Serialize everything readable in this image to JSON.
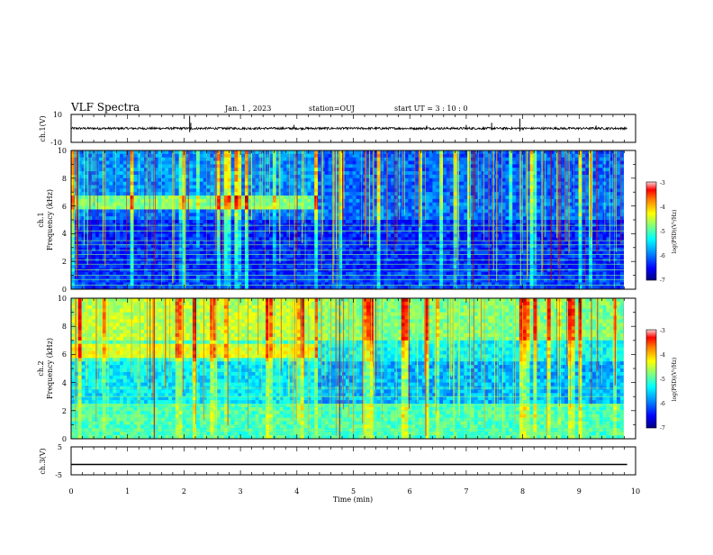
{
  "header": {
    "title": "VLF Spectra",
    "date": "Jan. 1 , 2023",
    "station": "station=OUJ",
    "start_ut": "start UT = 3 : 10 : 0"
  },
  "chart_data": [
    {
      "type": "line",
      "name": "ch1-waveform",
      "ylabel": "ch.1(V)",
      "ylim": [
        -10,
        10
      ],
      "yticks": [
        "10",
        "-10"
      ],
      "xlim": [
        0,
        10
      ],
      "baseline": 0,
      "spikes": [
        {
          "x": 2.1,
          "y": 9
        },
        {
          "x": 2.12,
          "y": 4
        },
        {
          "x": 3.95,
          "y": 2.5
        },
        {
          "x": 6.3,
          "y": 2
        },
        {
          "x": 7.0,
          "y": 2.5
        },
        {
          "x": 7.45,
          "y": 4
        },
        {
          "x": 7.95,
          "y": 7
        },
        {
          "x": 9.3,
          "y": 2
        }
      ]
    },
    {
      "type": "heatmap",
      "name": "ch1-spectrogram",
      "ylabel": "ch.1",
      "ylabel2": "Frequency (kHz)",
      "ylim": [
        0,
        10
      ],
      "yticks": [
        "0",
        "2",
        "4",
        "6",
        "8",
        "10"
      ],
      "xlim": [
        0,
        9.85
      ],
      "colorbar": {
        "label": "log(PSD)(V²/Hz)",
        "range": [
          -7,
          -3
        ],
        "ticks": [
          "-3",
          "-4",
          "-5",
          "-6",
          "-7"
        ]
      },
      "features": {
        "band_6kHz_until_min": 4.4,
        "hum_lines_kHz": [
          0.3,
          0.7,
          1.0,
          1.4,
          1.8,
          2.1,
          2.5,
          2.8,
          3.2,
          3.5,
          4.2,
          4.6
        ]
      }
    },
    {
      "type": "heatmap",
      "name": "ch2-spectrogram",
      "ylabel": "ch.2",
      "ylabel2": "Frequency (kHz)",
      "ylim": [
        0,
        10
      ],
      "yticks": [
        "0",
        "2",
        "4",
        "6",
        "8",
        "10"
      ],
      "xlim": [
        0,
        9.85
      ],
      "colorbar": {
        "label": "log(PSD)(V²/Hz)",
        "range": [
          -7,
          -3
        ],
        "ticks": [
          "-3",
          "-4",
          "-5",
          "-6",
          "-7"
        ]
      },
      "features": {
        "band_6kHz_until_min": 4.4,
        "hum_lines_kHz": [
          0.6,
          1.4,
          2.0,
          2.4,
          3.0,
          3.6
        ]
      }
    },
    {
      "type": "line",
      "name": "ch3-waveform",
      "ylabel": "ch.3(V)",
      "ylim": [
        -5,
        5
      ],
      "yticks": [
        "5",
        "-5"
      ],
      "xlim": [
        0,
        10
      ],
      "values_constant": -1.3
    }
  ],
  "xaxis": {
    "label": "Time (min)",
    "ticks": [
      "0",
      "1",
      "2",
      "3",
      "4",
      "5",
      "6",
      "7",
      "8",
      "9",
      "10"
    ],
    "range": [
      0,
      10
    ]
  },
  "colors": {
    "cmap": [
      "#00007f",
      "#0000ff",
      "#007fff",
      "#00ffff",
      "#7fff7f",
      "#ffff00",
      "#ff7f00",
      "#ff0000",
      "#7f0000"
    ]
  }
}
